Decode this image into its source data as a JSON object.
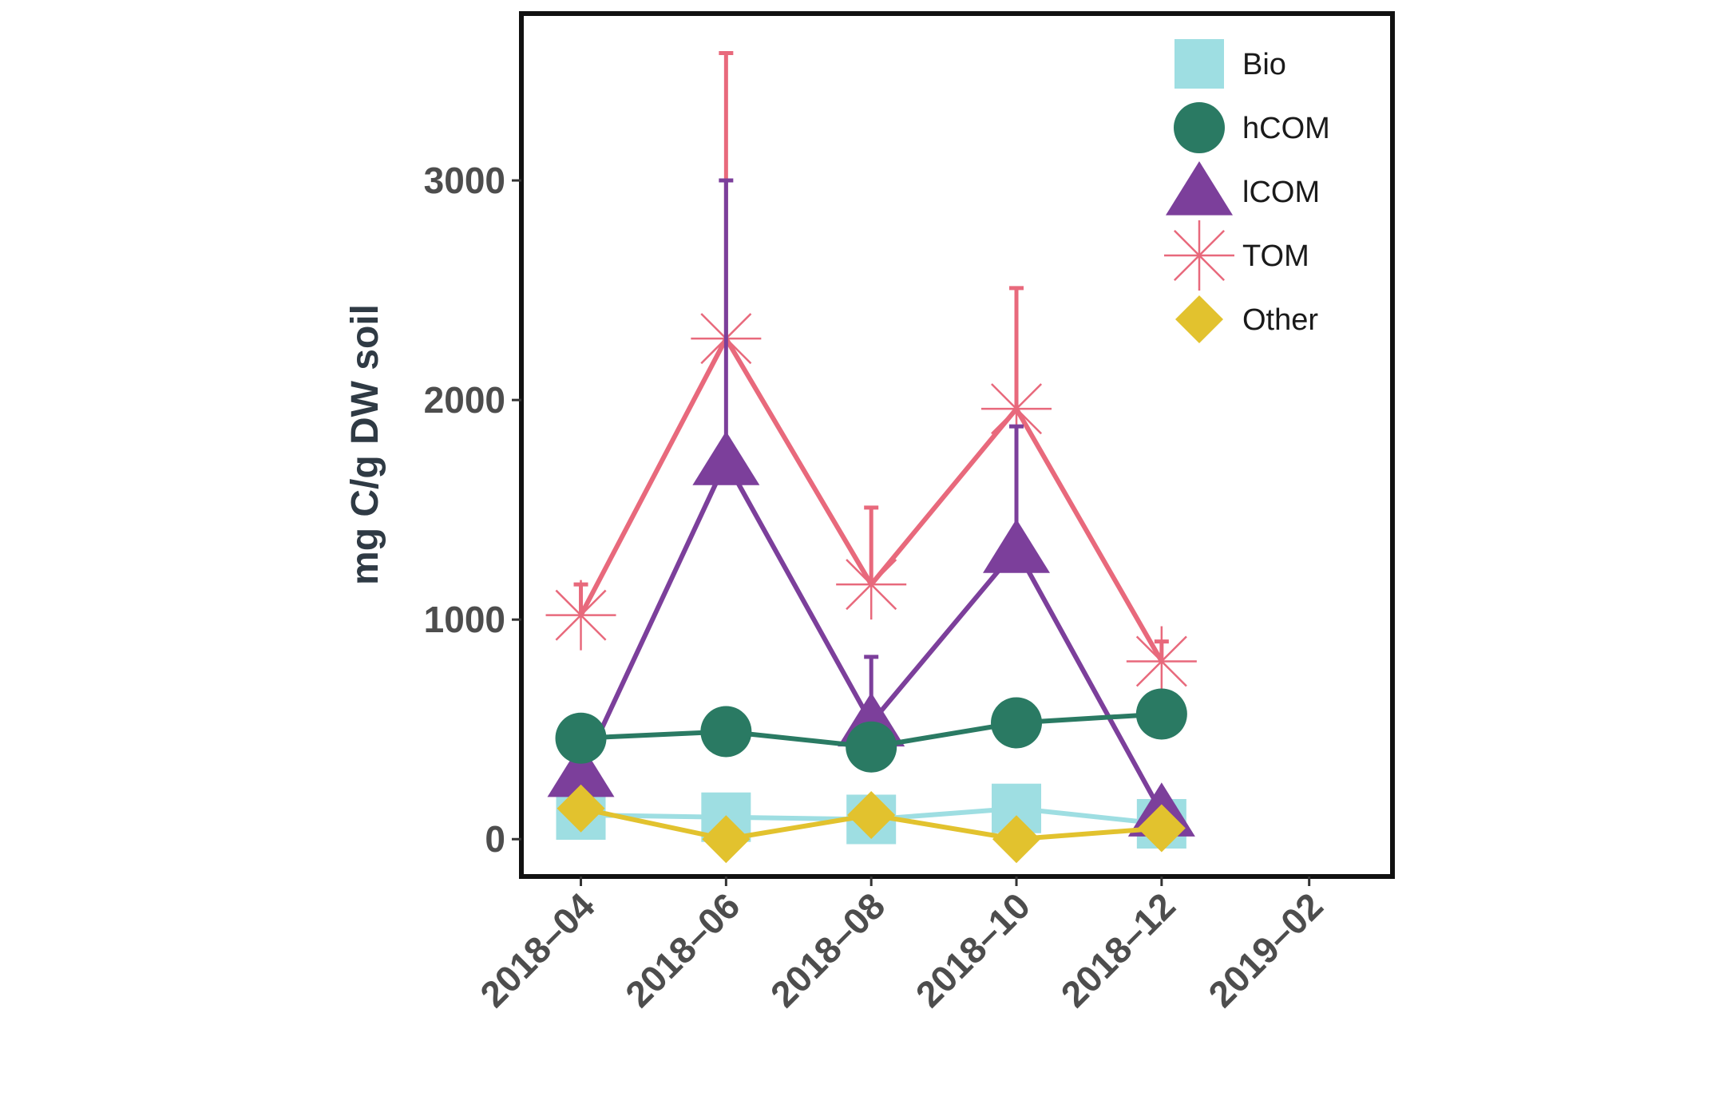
{
  "chart_data": {
    "type": "line",
    "ylabel": "mg C/g DW soil",
    "xlabel": "",
    "x_ticks": [
      "2018–04",
      "2018–06",
      "2018–08",
      "2018–10",
      "2018–12",
      "2019–02"
    ],
    "y_ticks": [
      "0",
      "1000",
      "2000",
      "3000"
    ],
    "ylim": [
      -170,
      3760
    ],
    "xlim": [
      "2018-03-07",
      "2019-03-08"
    ],
    "x": [
      "2018-04-01",
      "2018-06-01",
      "2018-08-01",
      "2018-10-01",
      "2018-12-01"
    ],
    "legend_position": "top-right",
    "grid": false,
    "series": [
      {
        "name": "Bio",
        "color": "#9edee2",
        "marker": "square",
        "values": [
          110,
          100,
          90,
          140,
          70
        ],
        "error": null
      },
      {
        "name": "hCOM",
        "color": "#2a7a63",
        "marker": "circle",
        "values": [
          460,
          490,
          420,
          530,
          570
        ],
        "error": null
      },
      {
        "name": "lCOM",
        "color": "#7c3f9b",
        "marker": "triangle",
        "values": [
          300,
          1720,
          530,
          1320,
          120
        ],
        "error": [
          0,
          1280,
          300,
          560,
          0
        ]
      },
      {
        "name": "TOM",
        "color": "#e8697c",
        "marker": "asterisk",
        "values": [
          1020,
          2280,
          1160,
          1960,
          810
        ],
        "error": [
          140,
          1300,
          350,
          550,
          90
        ]
      },
      {
        "name": "Other",
        "color": "#e2c22e",
        "marker": "diamond",
        "values": [
          140,
          0,
          110,
          0,
          50
        ],
        "error": null
      }
    ]
  }
}
